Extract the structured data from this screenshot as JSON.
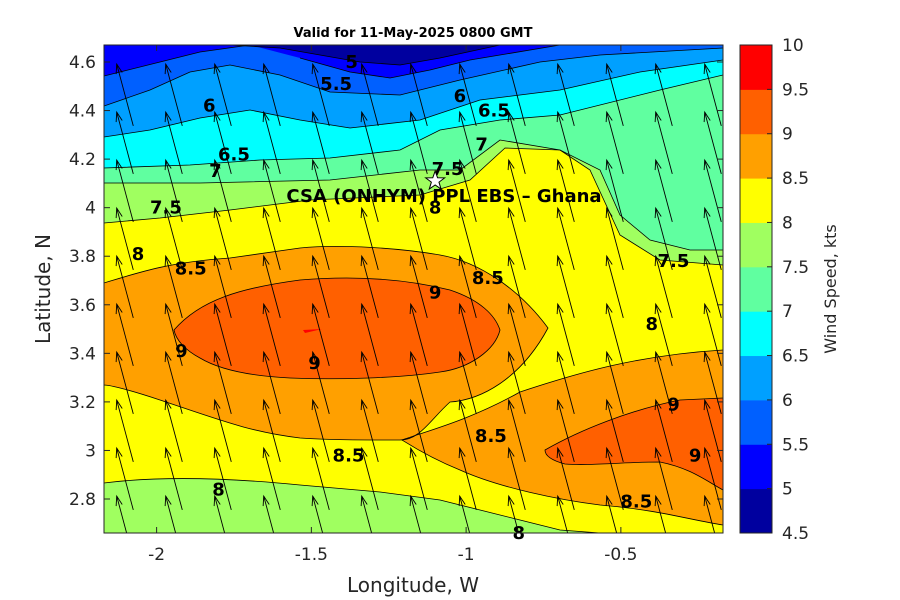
{
  "chart_data": {
    "type": "contour",
    "title": "Valid for 11-May-2025 0800 GMT",
    "xlabel": "Longitude, W",
    "ylabel": "Latitude, N",
    "xlim": [
      -2.17,
      -0.17
    ],
    "ylim": [
      2.66,
      4.67
    ],
    "xticks": [
      -2,
      -1.5,
      -1,
      -0.5
    ],
    "xtick_labels": [
      "-2",
      "-1.5",
      "-1",
      "-0.5"
    ],
    "yticks": [
      2.8,
      3,
      3.2,
      3.4,
      3.6,
      3.8,
      4,
      4.2,
      4.4,
      4.6
    ],
    "ytick_labels": [
      "2.8",
      "3",
      "3.2",
      "3.4",
      "3.6",
      "3.8",
      "4",
      "4.2",
      "4.4",
      "4.6"
    ],
    "colorbar": {
      "label": "Wind Speed, kts",
      "levels": [
        4.5,
        5,
        5.5,
        6,
        6.5,
        7,
        7.5,
        8,
        8.5,
        9,
        9.5,
        10
      ],
      "tick_labels": [
        "4.5",
        "5",
        "5.5",
        "6",
        "6.5",
        "7",
        "7.5",
        "8",
        "8.5",
        "9",
        "9.5",
        "10"
      ],
      "colors": [
        "#00009f",
        "#0000ff",
        "#0060ff",
        "#00a0ff",
        "#00ffff",
        "#60ffa0",
        "#a0ff60",
        "#ffff00",
        "#ffa000",
        "#ff6000",
        "#ff0000"
      ]
    },
    "site": {
      "label": "CSA (ONHYM) PPL EBS  – Ghana",
      "lon": -1.1,
      "lat": 4.11,
      "marker": "star"
    },
    "contour_labels": [
      {
        "text": "5",
        "lon": -1.37,
        "lat": 4.6
      },
      {
        "text": "5.5",
        "lon": -1.42,
        "lat": 4.51
      },
      {
        "text": "6",
        "lon": -1.83,
        "lat": 4.42
      },
      {
        "text": "6",
        "lon": -1.02,
        "lat": 4.46
      },
      {
        "text": "6.5",
        "lon": -1.75,
        "lat": 4.22
      },
      {
        "text": "6.5",
        "lon": -0.91,
        "lat": 4.4
      },
      {
        "text": "7",
        "lon": -1.81,
        "lat": 4.15
      },
      {
        "text": "7",
        "lon": -0.95,
        "lat": 4.26
      },
      {
        "text": "7.5",
        "lon": -1.97,
        "lat": 4.0
      },
      {
        "text": "7.5",
        "lon": -1.06,
        "lat": 4.16
      },
      {
        "text": "7.5",
        "lon": -0.33,
        "lat": 3.78
      },
      {
        "text": "8",
        "lon": -2.06,
        "lat": 3.81
      },
      {
        "text": "8",
        "lon": -1.1,
        "lat": 4.0
      },
      {
        "text": "8",
        "lon": -0.4,
        "lat": 3.52
      },
      {
        "text": "8",
        "lon": -1.8,
        "lat": 2.84
      },
      {
        "text": "8",
        "lon": -0.83,
        "lat": 2.66
      },
      {
        "text": "8.5",
        "lon": -1.89,
        "lat": 3.75
      },
      {
        "text": "8.5",
        "lon": -0.93,
        "lat": 3.71
      },
      {
        "text": "8.5",
        "lon": -1.38,
        "lat": 2.98
      },
      {
        "text": "8.5",
        "lon": -0.92,
        "lat": 3.06
      },
      {
        "text": "8.5",
        "lon": -0.45,
        "lat": 2.79
      },
      {
        "text": "9",
        "lon": -1.92,
        "lat": 3.41
      },
      {
        "text": "9",
        "lon": -1.1,
        "lat": 3.65
      },
      {
        "text": "9",
        "lon": -1.49,
        "lat": 3.36
      },
      {
        "text": "9",
        "lon": -0.33,
        "lat": 3.19
      },
      {
        "text": "9",
        "lon": -0.26,
        "lat": 2.98
      }
    ],
    "wind_direction": "predominantly from SSE, arrows pointing NNW"
  }
}
